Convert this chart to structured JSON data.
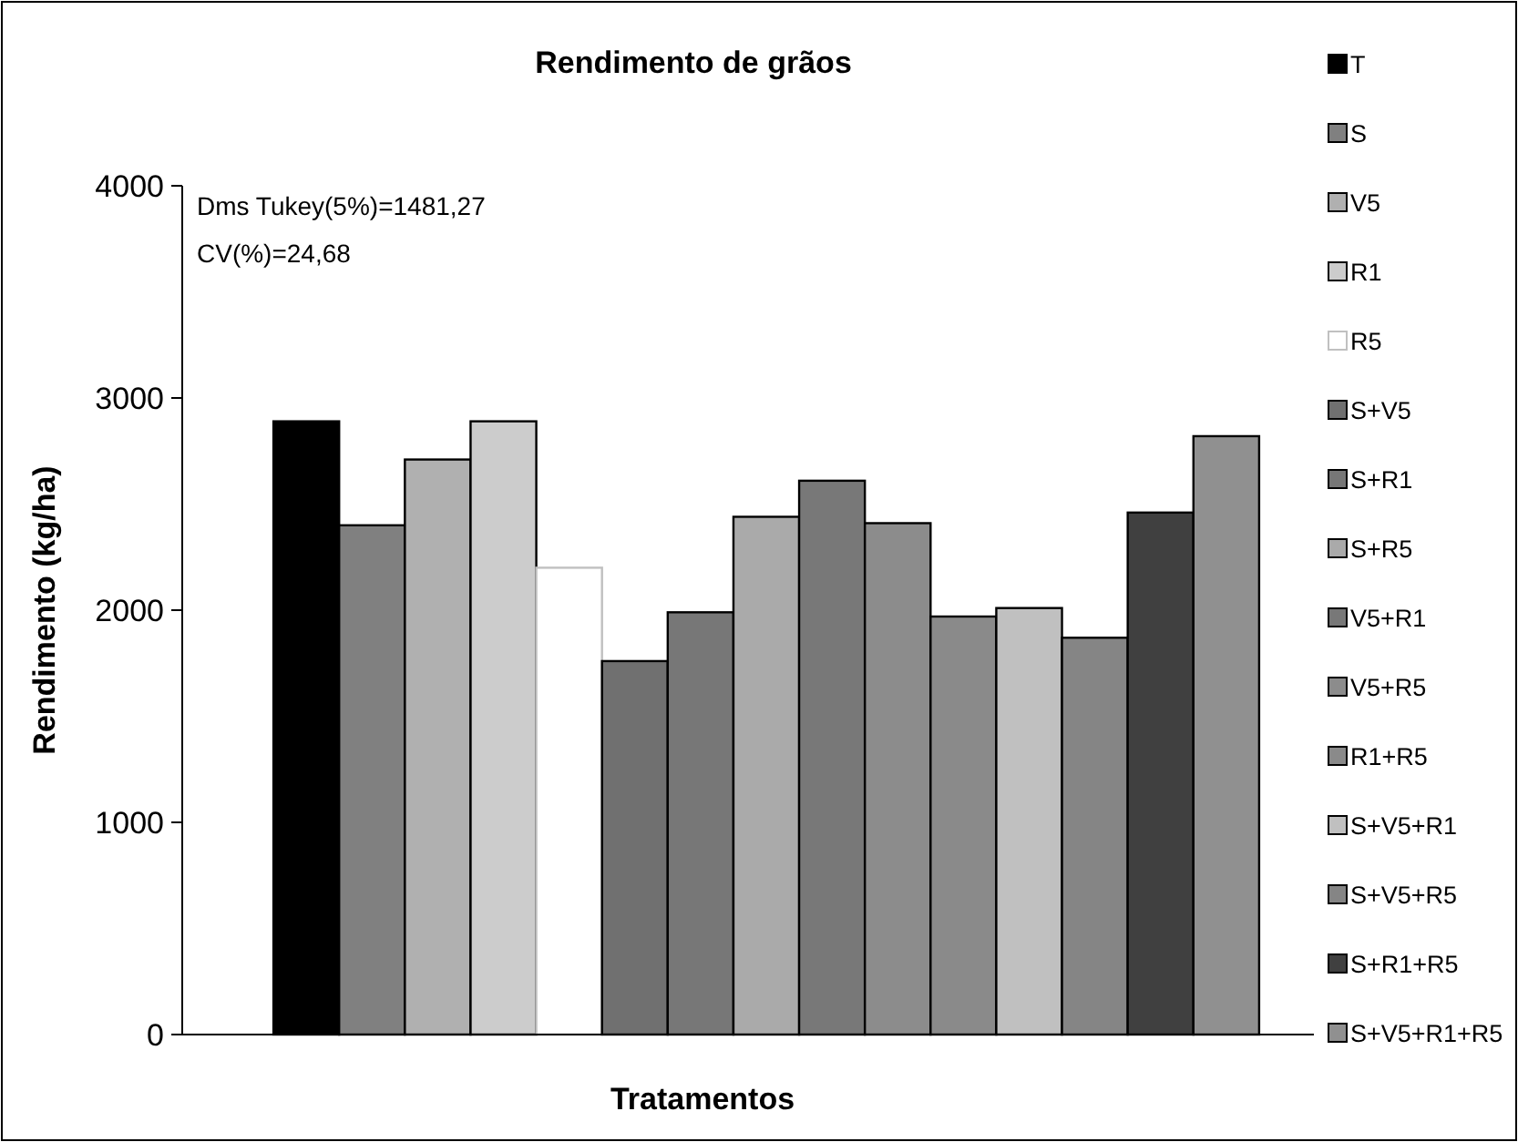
{
  "chart_data": {
    "type": "bar",
    "title": "Rendimento de grãos",
    "xlabel": "Tratamentos",
    "ylabel": "Rendimento (kg/ha)",
    "categories": [
      null
    ],
    "series": [
      {
        "name": "T",
        "color": "#000000",
        "values": [
          2890
        ]
      },
      {
        "name": "S",
        "color": "#808080",
        "values": [
          2400
        ]
      },
      {
        "name": "V5",
        "color": "#b0b0b0",
        "values": [
          2710
        ]
      },
      {
        "name": "R1",
        "color": "#cccccc",
        "values": [
          2890
        ]
      },
      {
        "name": "R5",
        "color": "#ffffff",
        "values": [
          2200
        ]
      },
      {
        "name": "S+V5",
        "color": "#707070",
        "values": [
          1760
        ]
      },
      {
        "name": "S+R1",
        "color": "#777777",
        "values": [
          1990
        ]
      },
      {
        "name": "S+R5",
        "color": "#aaaaaa",
        "values": [
          2440
        ]
      },
      {
        "name": "V5+R1",
        "color": "#787878",
        "values": [
          2610
        ]
      },
      {
        "name": "V5+R5",
        "color": "#8c8c8c",
        "values": [
          2410
        ]
      },
      {
        "name": "R1+R5",
        "color": "#8a8a8a",
        "values": [
          1970
        ]
      },
      {
        "name": "S+V5+R1",
        "color": "#c0c0c0",
        "values": [
          2010
        ]
      },
      {
        "name": "S+V5+R5",
        "color": "#858585",
        "values": [
          1870
        ]
      },
      {
        "name": "S+R1+R5",
        "color": "#404040",
        "values": [
          2460
        ]
      },
      {
        "name": "S+V5+R1+R5",
        "color": "#909090",
        "values": [
          2820
        ]
      }
    ],
    "ylim": [
      0,
      4000
    ],
    "yticks": [
      0,
      1000,
      2000,
      3000,
      4000
    ],
    "grid": false,
    "legend": "right",
    "annotations": [
      "Dms Tukey(5%)=1481,27",
      "CV(%)=24,68"
    ]
  }
}
